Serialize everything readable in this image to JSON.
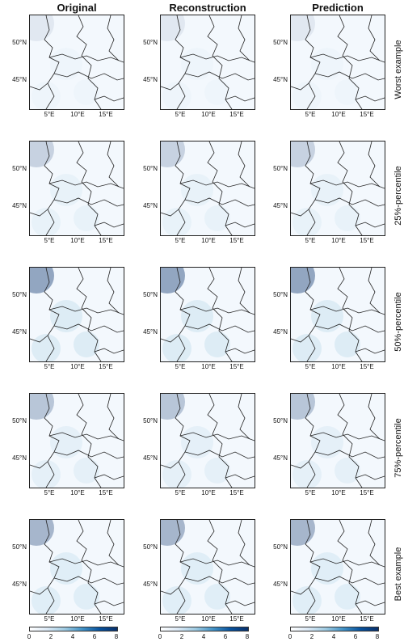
{
  "columns": [
    "Original",
    "Reconstruction",
    "Prediction"
  ],
  "rows": [
    "Worst example",
    "25%-percentile",
    "50%-percentile",
    "75%-percentile",
    "Best example"
  ],
  "lat_labels": [
    "50°N",
    "45°N"
  ],
  "lon_labels": [
    "5°E",
    "10°E",
    "15°E"
  ],
  "colorbar_ticks": [
    "0",
    "2",
    "4",
    "6",
    "8"
  ],
  "colors": {
    "low": "#ffffff",
    "mid": "#9ecae1",
    "high": "#08306b",
    "border": "#222222"
  },
  "row_intensity": [
    0.15,
    0.35,
    0.75,
    0.45,
    0.6
  ]
}
